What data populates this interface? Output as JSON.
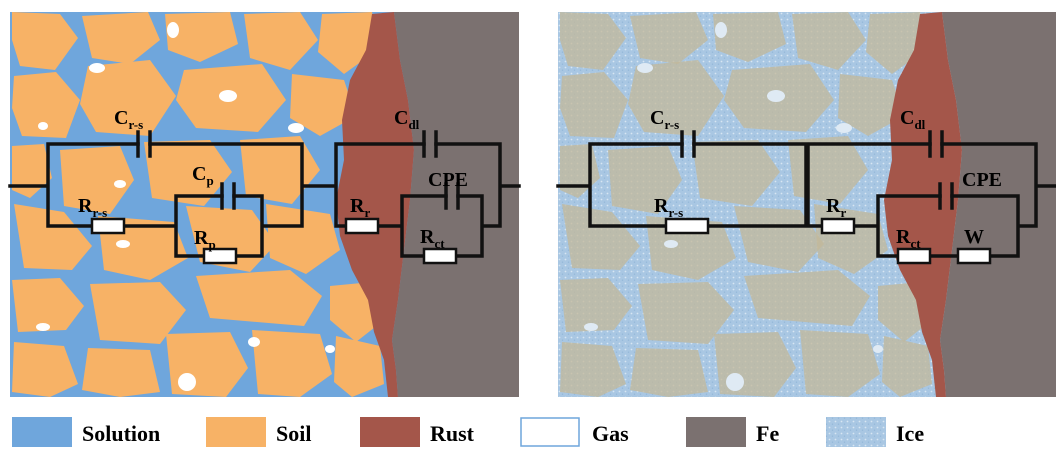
{
  "panels": [
    {
      "id": "left",
      "components": {
        "c_rs": {
          "main": "C",
          "sub": "r-s"
        },
        "r_rs": {
          "main": "R",
          "sub": "r-s"
        },
        "c_p": {
          "main": "C",
          "sub": "p"
        },
        "r_p": {
          "main": "R",
          "sub": "p"
        },
        "c_dl": {
          "main": "C",
          "sub": "dl"
        },
        "cpe": {
          "main": "CPE",
          "sub": ""
        },
        "r_r": {
          "main": "R",
          "sub": "r"
        },
        "r_ct": {
          "main": "R",
          "sub": "ct"
        }
      }
    },
    {
      "id": "right",
      "components": {
        "c_rs": {
          "main": "C",
          "sub": "r-s"
        },
        "r_rs": {
          "main": "R",
          "sub": "r-s"
        },
        "c_dl": {
          "main": "C",
          "sub": "dl"
        },
        "cpe": {
          "main": "CPE",
          "sub": ""
        },
        "r_r": {
          "main": "R",
          "sub": "r"
        },
        "r_ct": {
          "main": "R",
          "sub": "ct"
        },
        "w": {
          "main": "W",
          "sub": ""
        }
      }
    }
  ],
  "legend": [
    {
      "label": "Solution",
      "color": "#6fa6dc"
    },
    {
      "label": "Soil",
      "color": "#f7b266"
    },
    {
      "label": "Rust",
      "color": "#a4564a"
    },
    {
      "label": "Gas",
      "color": "#ffffff"
    },
    {
      "label": "Fe",
      "color": "#7b7170"
    },
    {
      "label": "Ice",
      "color": "#b8d2e6"
    }
  ]
}
